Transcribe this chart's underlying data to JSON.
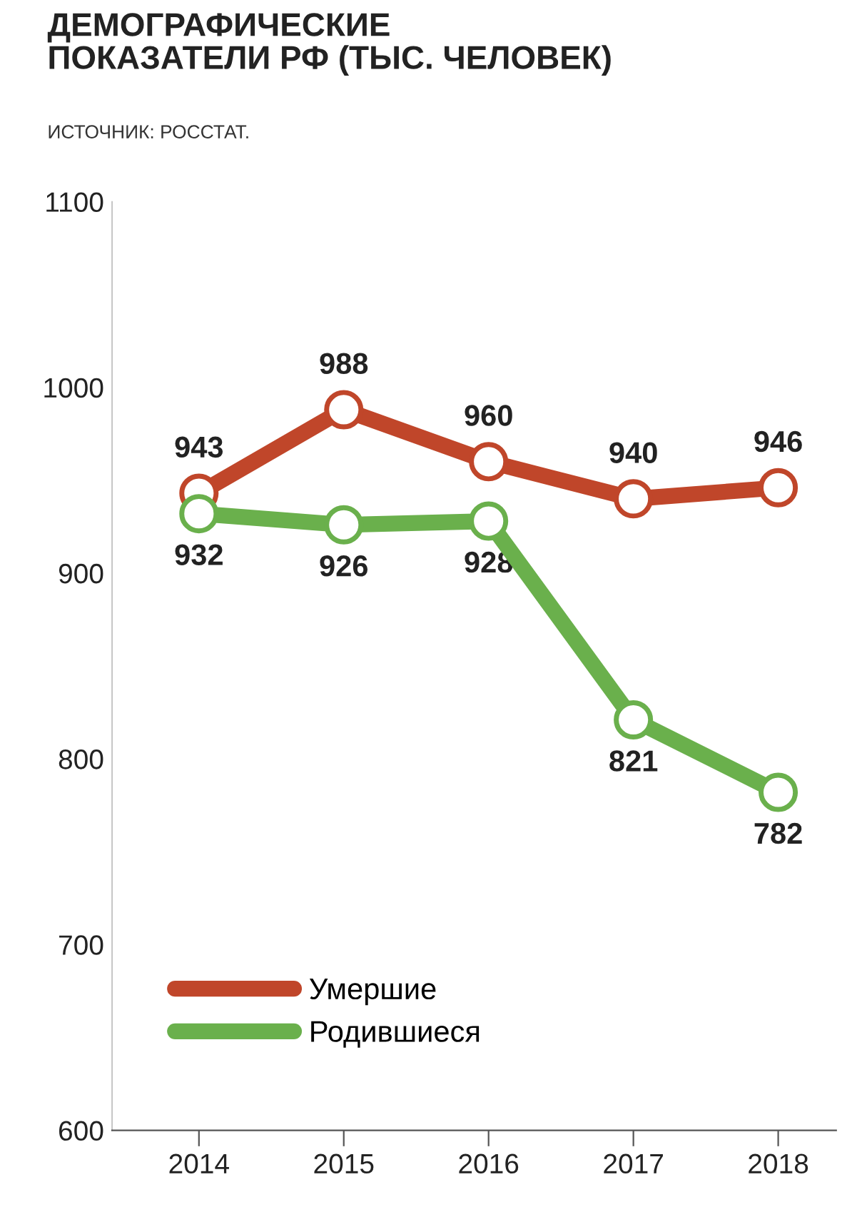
{
  "chart_data": {
    "type": "line",
    "title": "ДЕМОГРАФИЧЕСКИЕ\nПОКАЗАТЕЛИ РФ (ТЫС. ЧЕЛОВЕК)",
    "annotations": [
      "ИСТОЧНИК: РОССТАТ."
    ],
    "categories": [
      "2014",
      "2015",
      "2016",
      "2017",
      "2018"
    ],
    "series": [
      {
        "name": "Умершие",
        "color": "#c0462a",
        "values": [
          943,
          988,
          960,
          940,
          946
        ]
      },
      {
        "name": "Родившиеся",
        "color": "#6ab04c",
        "values": [
          932,
          926,
          928,
          821,
          782
        ]
      }
    ],
    "ylim": [
      600,
      1100
    ],
    "yticks": [
      600,
      700,
      800,
      900,
      1000,
      1100
    ],
    "data_labels": true,
    "marker": "circle",
    "line_style": "solid",
    "legend": "bottom left",
    "grid": false
  }
}
